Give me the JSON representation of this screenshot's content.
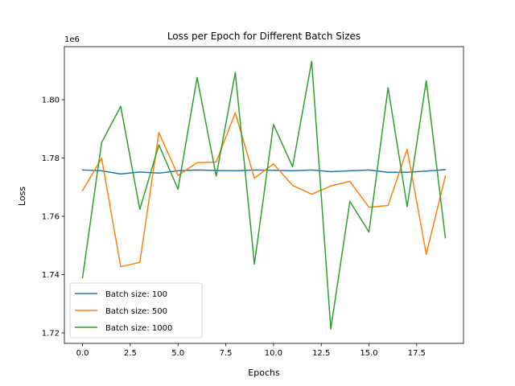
{
  "chart_data": {
    "type": "line",
    "title": "Loss per Epoch for Different Batch Sizes",
    "xlabel": "Epochs",
    "ylabel": "Loss",
    "y_scale_label": "1e6",
    "xlim": [
      -0.95,
      19.95
    ],
    "ylim": [
      1.7164,
      1.8182
    ],
    "y_scale_factor": 1000000,
    "x_ticks": [
      0.0,
      2.5,
      5.0,
      7.5,
      10.0,
      12.5,
      15.0,
      17.5
    ],
    "x_tick_labels": [
      "0.0",
      "2.5",
      "5.0",
      "7.5",
      "10.0",
      "12.5",
      "15.0",
      "17.5"
    ],
    "y_ticks": [
      1.72,
      1.74,
      1.76,
      1.78,
      1.8
    ],
    "y_tick_labels": [
      "1.72",
      "1.74",
      "1.76",
      "1.78",
      "1.80"
    ],
    "grid": false,
    "legend_position": "lower-left",
    "x": [
      0,
      1,
      2,
      3,
      4,
      5,
      6,
      7,
      8,
      9,
      10,
      11,
      12,
      13,
      14,
      15,
      16,
      17,
      18,
      19
    ],
    "series": [
      {
        "name": "Batch size: 100",
        "color": "#1f77b4",
        "values": [
          1.7759,
          1.7756,
          1.7745,
          1.7752,
          1.7748,
          1.7756,
          1.7759,
          1.7757,
          1.7756,
          1.7759,
          1.7758,
          1.7756,
          1.7759,
          1.7753,
          1.7756,
          1.7759,
          1.7751,
          1.7751,
          1.7755,
          1.776
        ]
      },
      {
        "name": "Batch size: 500",
        "color": "#ff7f0e",
        "values": [
          1.7688,
          1.7799,
          1.7427,
          1.7442,
          1.7887,
          1.774,
          1.7784,
          1.7786,
          1.7955,
          1.7731,
          1.778,
          1.7706,
          1.7676,
          1.7704,
          1.772,
          1.7631,
          1.7637,
          1.783,
          1.747,
          1.7738
        ]
      },
      {
        "name": "Batch size: 1000",
        "color": "#2ca02c",
        "values": [
          1.7389,
          1.7853,
          1.7977,
          1.7624,
          1.7845,
          1.7693,
          1.8076,
          1.7738,
          1.8093,
          1.7436,
          1.7915,
          1.777,
          1.8132,
          1.7213,
          1.7651,
          1.7546,
          1.8041,
          1.7633,
          1.8065,
          1.7526
        ]
      }
    ]
  }
}
